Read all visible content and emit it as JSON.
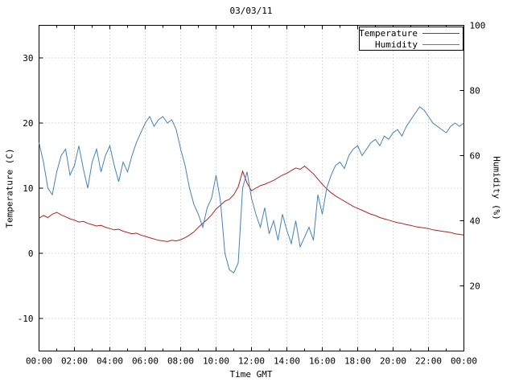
{
  "chart_data": {
    "type": "line",
    "title": "03/03/11",
    "xlabel": "Time GMT",
    "grid": true,
    "legend": {
      "position": "top-right",
      "box": true
    },
    "x": {
      "min": 0,
      "max": 24,
      "tick_interval_hours": 2,
      "minor_tick_hours": 1,
      "tick_labels": [
        "00:00",
        "02:00",
        "04:00",
        "06:00",
        "08:00",
        "10:00",
        "12:00",
        "14:00",
        "16:00",
        "18:00",
        "20:00",
        "22:00",
        "00:00"
      ]
    },
    "y_left": {
      "label": "Temperature (C)",
      "min": -15,
      "max": 35,
      "ticks": [
        -10,
        0,
        10,
        20,
        30
      ]
    },
    "y_right": {
      "label": "Humidity (%)",
      "min": 0,
      "max": 100,
      "ticks": [
        20,
        40,
        60,
        80,
        100
      ]
    },
    "series": [
      {
        "name": "Temperature",
        "axis": "left",
        "color": "#b22222",
        "x_start_hour": 0,
        "x_step_hours": 0.25,
        "values": [
          5.4,
          5.8,
          5.5,
          6.0,
          6.3,
          5.9,
          5.6,
          5.3,
          5.1,
          4.8,
          4.9,
          4.6,
          4.4,
          4.2,
          4.3,
          4.0,
          3.8,
          3.6,
          3.7,
          3.4,
          3.2,
          3.0,
          3.1,
          2.8,
          2.6,
          2.4,
          2.2,
          2.0,
          1.9,
          1.8,
          2.0,
          1.9,
          2.1,
          2.4,
          2.8,
          3.3,
          4.0,
          4.6,
          5.2,
          5.9,
          6.8,
          7.4,
          8.0,
          8.3,
          9.0,
          10.2,
          12.6,
          10.8,
          9.6,
          10.0,
          10.4,
          10.6,
          10.9,
          11.2,
          11.6,
          12.0,
          12.3,
          12.7,
          13.1,
          12.9,
          13.4,
          12.8,
          12.2,
          11.4,
          10.6,
          9.9,
          9.3,
          8.8,
          8.4,
          8.0,
          7.6,
          7.2,
          6.9,
          6.6,
          6.3,
          6.0,
          5.8,
          5.5,
          5.3,
          5.1,
          4.9,
          4.7,
          4.6,
          4.4,
          4.3,
          4.1,
          4.0,
          3.9,
          3.8,
          3.6,
          3.5,
          3.4,
          3.3,
          3.2,
          3.0,
          2.9,
          2.8
        ]
      },
      {
        "name": "Humidity",
        "axis": "right",
        "color": "#4682b4",
        "x_start_hour": 0,
        "x_step_hours": 0.25,
        "values": [
          64,
          58,
          50,
          48,
          55,
          60,
          62,
          54,
          57,
          63,
          56,
          50,
          58,
          62,
          55,
          60,
          63,
          57,
          52,
          58,
          55,
          60,
          64,
          67,
          70,
          72,
          69,
          71,
          72,
          70,
          71,
          68,
          62,
          57,
          50,
          45,
          42,
          38,
          44,
          47,
          54,
          46,
          30,
          25,
          24,
          27,
          50,
          55,
          47,
          42,
          38,
          44,
          36,
          40,
          34,
          42,
          37,
          33,
          40,
          32,
          35,
          38,
          34,
          48,
          42,
          50,
          54,
          57,
          58,
          56,
          60,
          62,
          63,
          60,
          62,
          64,
          65,
          63,
          66,
          65,
          67,
          68,
          66,
          69,
          71,
          73,
          75,
          74,
          72,
          70,
          69,
          68,
          67,
          69,
          70,
          69,
          70
        ]
      }
    ],
    "colors": {
      "grid": "#b8b8b8",
      "axis": "#000000",
      "background": "#ffffff"
    }
  }
}
